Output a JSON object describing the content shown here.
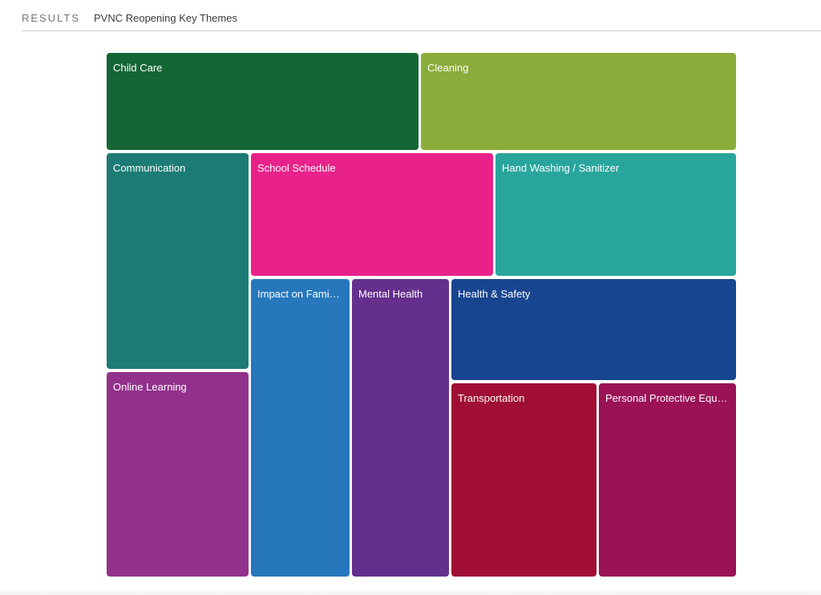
{
  "header": {
    "section_label": "RESULTS",
    "title": "PVNC Reopening Key Themes"
  },
  "chart_data": {
    "type": "treemap",
    "tiles": [
      {
        "label": "Child Care",
        "color": "#136633"
      },
      {
        "label": "Cleaning",
        "color": "#8aac3a"
      },
      {
        "label": "Communication",
        "color": "#1c7c75"
      },
      {
        "label": "School Schedule",
        "color": "#e8228a"
      },
      {
        "label": "Hand Washing / Sanitizer",
        "color": "#28a69d"
      },
      {
        "label": "Impact on Fami…",
        "color": "#2677bc"
      },
      {
        "label": "Mental Health",
        "color": "#652f8d"
      },
      {
        "label": "Health & Safety",
        "color": "#184590"
      },
      {
        "label": "Online Learning",
        "color": "#92318c"
      },
      {
        "label": "Transportation",
        "color": "#a00e34"
      },
      {
        "label": "Personal Protective Equ…",
        "color": "#9b1257"
      }
    ]
  }
}
